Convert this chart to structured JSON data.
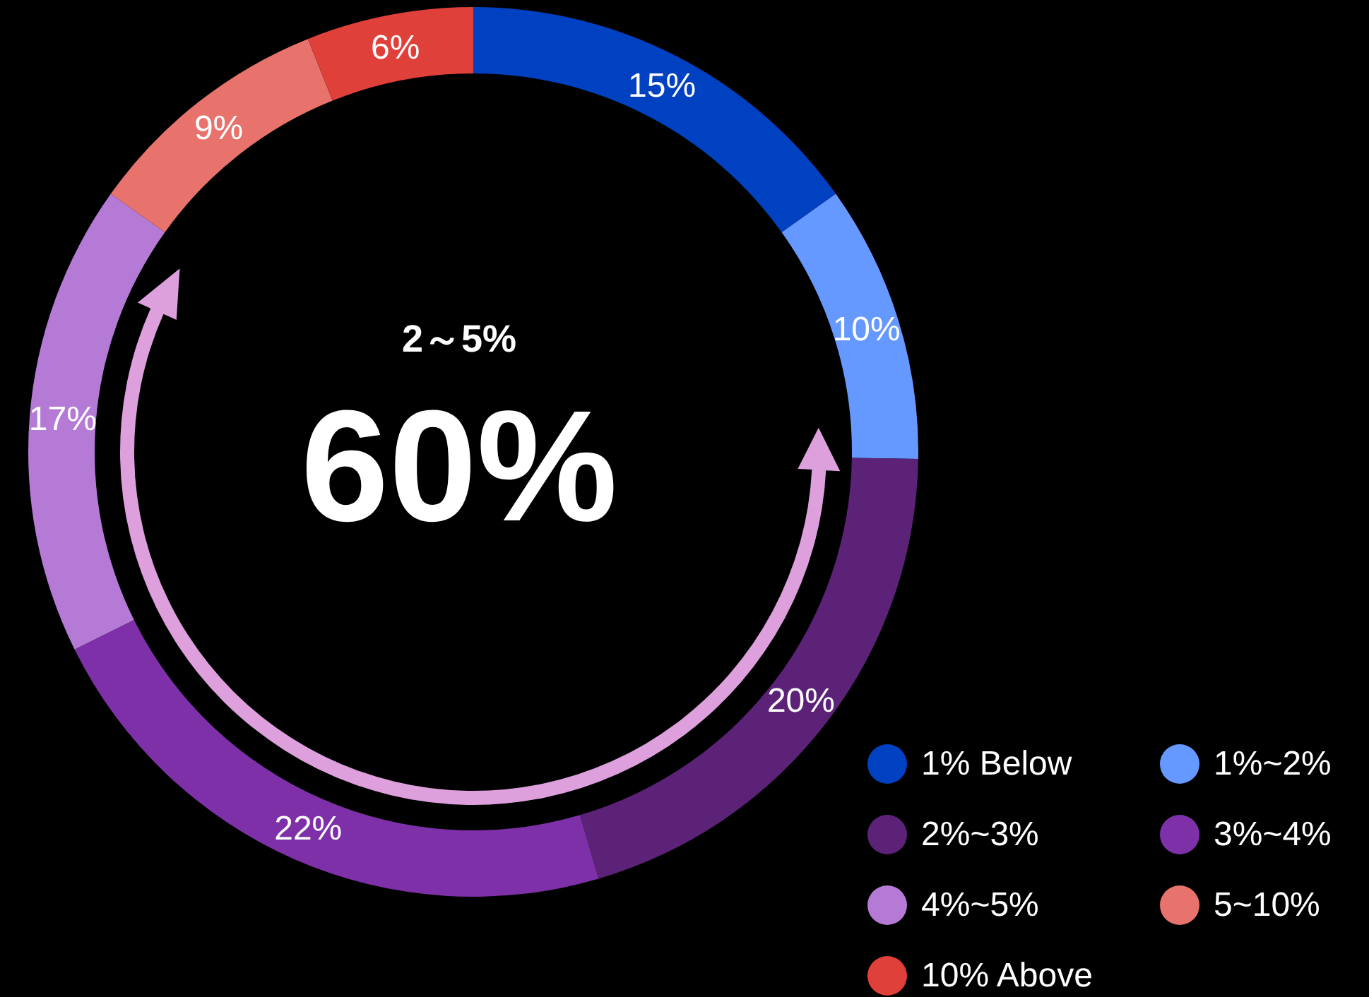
{
  "chart_data": {
    "type": "donut",
    "categories": [
      "1% Below",
      "1%~2%",
      "2%~3%",
      "3%~4%",
      "4%~5%",
      "5~10%",
      "10% Above"
    ],
    "values": [
      15,
      10,
      20,
      22,
      17,
      9,
      6
    ],
    "colors": [
      "#0041c2",
      "#6699ff",
      "#5c2278",
      "#7e30a8",
      "#b57ad6",
      "#e8736c",
      "#e0403a"
    ],
    "value_labels": [
      "15%",
      "10%",
      "20%",
      "22%",
      "17%",
      "9%",
      "6%"
    ],
    "annotations": [
      "2～5%",
      "60%"
    ],
    "legend": "bottom right"
  }
}
